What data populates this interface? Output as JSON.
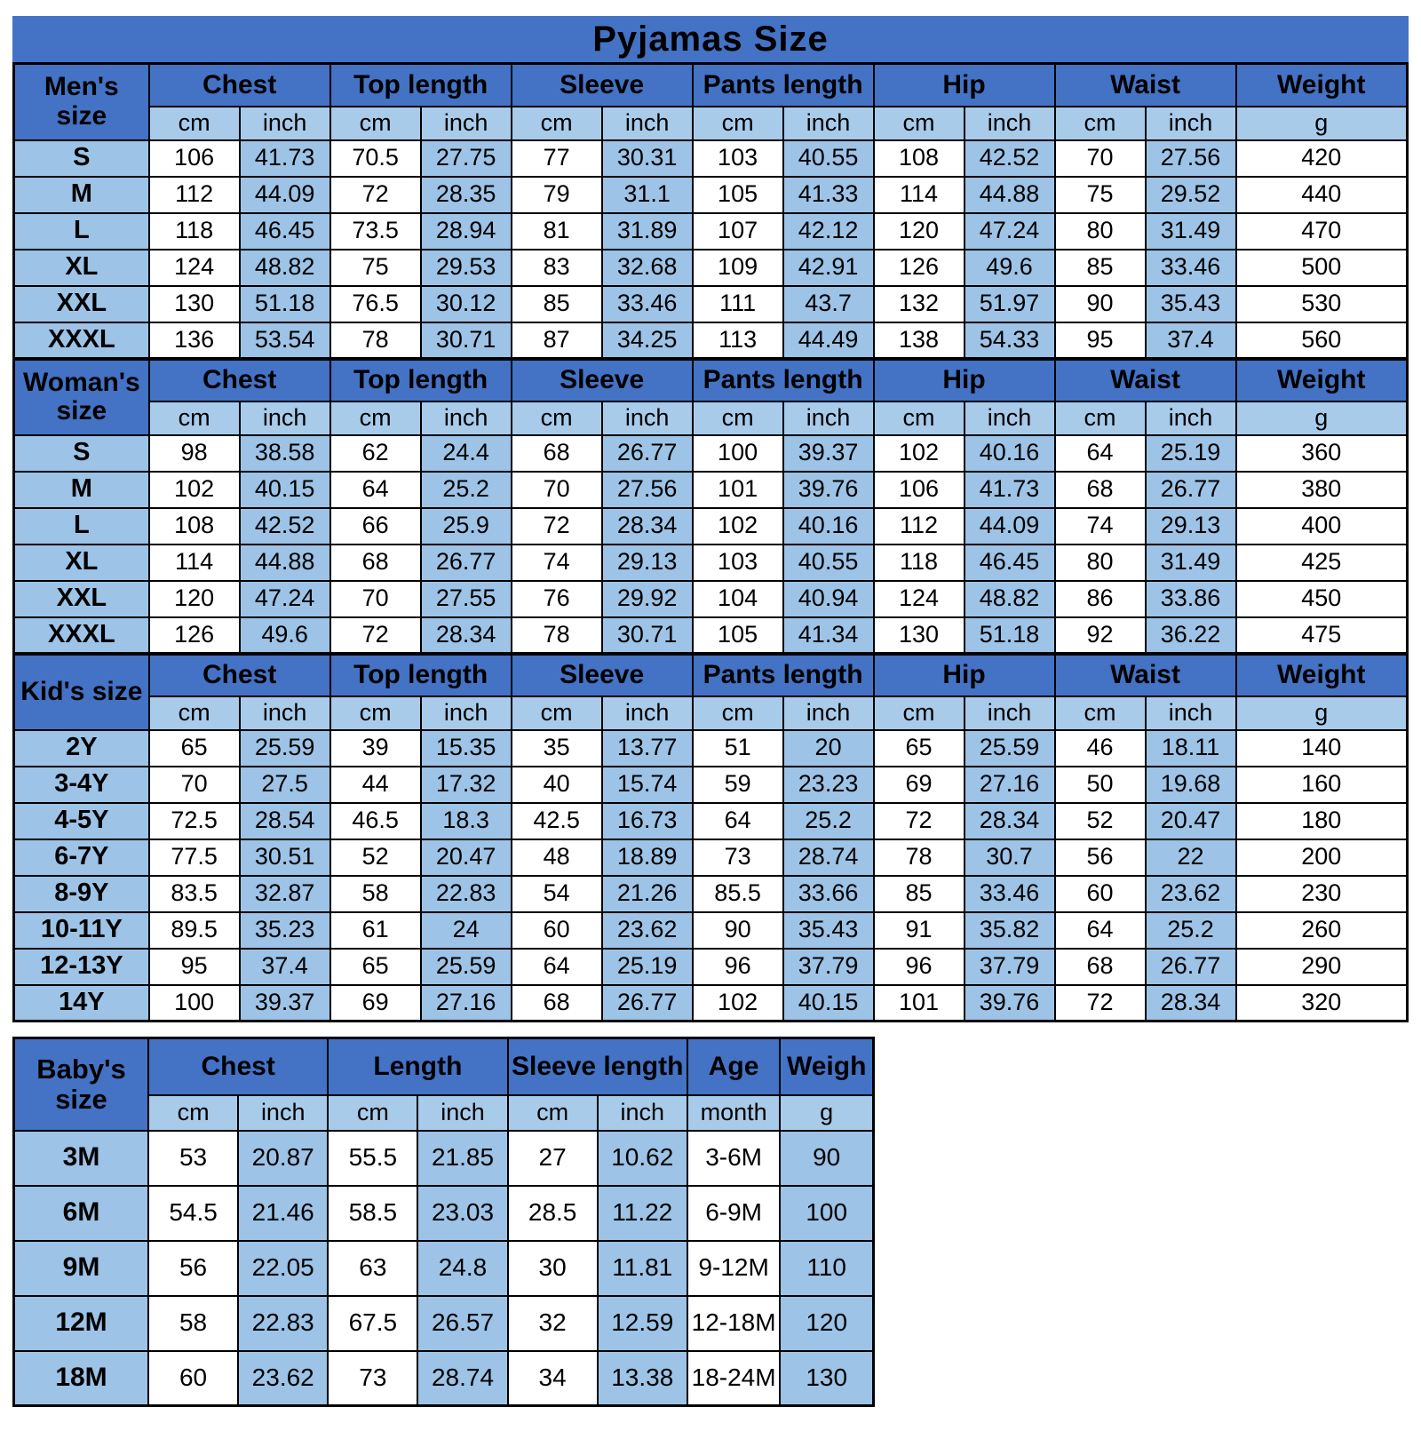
{
  "title": "Pyjamas Size",
  "colors": {
    "header_blue": "#4472C4",
    "subheader_blue": "#A8CBEA",
    "cell_blue": "#9DC3E6",
    "border_black": "#000000",
    "background_white": "#FFFFFF"
  },
  "chart_data": [
    {
      "type": "table",
      "section": "Men's size",
      "label_lines": [
        "Men's",
        "size"
      ],
      "column_groups": [
        {
          "label": "Chest",
          "units": [
            "cm",
            "inch"
          ]
        },
        {
          "label": "Top length",
          "units": [
            "cm",
            "inch"
          ]
        },
        {
          "label": "Sleeve",
          "units": [
            "cm",
            "inch"
          ]
        },
        {
          "label": "Pants length",
          "units": [
            "cm",
            "inch"
          ]
        },
        {
          "label": "Hip",
          "units": [
            "cm",
            "inch"
          ]
        },
        {
          "label": "Waist",
          "units": [
            "cm",
            "inch"
          ]
        },
        {
          "label": "Weight",
          "units": [
            "g"
          ]
        }
      ],
      "g_shaded": false,
      "rows": [
        {
          "size": "S",
          "values": [
            "106",
            "41.73",
            "70.5",
            "27.75",
            "77",
            "30.31",
            "103",
            "40.55",
            "108",
            "42.52",
            "70",
            "27.56",
            "420"
          ]
        },
        {
          "size": "M",
          "values": [
            "112",
            "44.09",
            "72",
            "28.35",
            "79",
            "31.1",
            "105",
            "41.33",
            "114",
            "44.88",
            "75",
            "29.52",
            "440"
          ]
        },
        {
          "size": "L",
          "values": [
            "118",
            "46.45",
            "73.5",
            "28.94",
            "81",
            "31.89",
            "107",
            "42.12",
            "120",
            "47.24",
            "80",
            "31.49",
            "470"
          ]
        },
        {
          "size": "XL",
          "values": [
            "124",
            "48.82",
            "75",
            "29.53",
            "83",
            "32.68",
            "109",
            "42.91",
            "126",
            "49.6",
            "85",
            "33.46",
            "500"
          ]
        },
        {
          "size": "XXL",
          "values": [
            "130",
            "51.18",
            "76.5",
            "30.12",
            "85",
            "33.46",
            "111",
            "43.7",
            "132",
            "51.97",
            "90",
            "35.43",
            "530"
          ]
        },
        {
          "size": "XXXL",
          "values": [
            "136",
            "53.54",
            "78",
            "30.71",
            "87",
            "34.25",
            "113",
            "44.49",
            "138",
            "54.33",
            "95",
            "37.4",
            "560"
          ]
        }
      ]
    },
    {
      "type": "table",
      "section": "Woman's size",
      "label_lines": [
        "Woman's",
        "size"
      ],
      "column_groups": [
        {
          "label": "Chest",
          "units": [
            "cm",
            "inch"
          ]
        },
        {
          "label": "Top length",
          "units": [
            "cm",
            "inch"
          ]
        },
        {
          "label": "Sleeve",
          "units": [
            "cm",
            "inch"
          ]
        },
        {
          "label": "Pants length",
          "units": [
            "cm",
            "inch"
          ]
        },
        {
          "label": "Hip",
          "units": [
            "cm",
            "inch"
          ]
        },
        {
          "label": "Waist",
          "units": [
            "cm",
            "inch"
          ]
        },
        {
          "label": "Weight",
          "units": [
            "g"
          ]
        }
      ],
      "g_shaded": false,
      "rows": [
        {
          "size": "S",
          "values": [
            "98",
            "38.58",
            "62",
            "24.4",
            "68",
            "26.77",
            "100",
            "39.37",
            "102",
            "40.16",
            "64",
            "25.19",
            "360"
          ]
        },
        {
          "size": "M",
          "values": [
            "102",
            "40.15",
            "64",
            "25.2",
            "70",
            "27.56",
            "101",
            "39.76",
            "106",
            "41.73",
            "68",
            "26.77",
            "380"
          ]
        },
        {
          "size": "L",
          "values": [
            "108",
            "42.52",
            "66",
            "25.9",
            "72",
            "28.34",
            "102",
            "40.16",
            "112",
            "44.09",
            "74",
            "29.13",
            "400"
          ]
        },
        {
          "size": "XL",
          "values": [
            "114",
            "44.88",
            "68",
            "26.77",
            "74",
            "29.13",
            "103",
            "40.55",
            "118",
            "46.45",
            "80",
            "31.49",
            "425"
          ]
        },
        {
          "size": "XXL",
          "values": [
            "120",
            "47.24",
            "70",
            "27.55",
            "76",
            "29.92",
            "104",
            "40.94",
            "124",
            "48.82",
            "86",
            "33.86",
            "450"
          ]
        },
        {
          "size": "XXXL",
          "values": [
            "126",
            "49.6",
            "72",
            "28.34",
            "78",
            "30.71",
            "105",
            "41.34",
            "130",
            "51.18",
            "92",
            "36.22",
            "475"
          ]
        }
      ]
    },
    {
      "type": "table",
      "section": "Kid's size",
      "label_lines": [
        "Kid's size"
      ],
      "column_groups": [
        {
          "label": "Chest",
          "units": [
            "cm",
            "inch"
          ]
        },
        {
          "label": "Top length",
          "units": [
            "cm",
            "inch"
          ]
        },
        {
          "label": "Sleeve",
          "units": [
            "cm",
            "inch"
          ]
        },
        {
          "label": "Pants length",
          "units": [
            "cm",
            "inch"
          ]
        },
        {
          "label": "Hip",
          "units": [
            "cm",
            "inch"
          ]
        },
        {
          "label": "Waist",
          "units": [
            "cm",
            "inch"
          ]
        },
        {
          "label": "Weight",
          "units": [
            "g"
          ]
        }
      ],
      "g_shaded": false,
      "rows": [
        {
          "size": "2Y",
          "values": [
            "65",
            "25.59",
            "39",
            "15.35",
            "35",
            "13.77",
            "51",
            "20",
            "65",
            "25.59",
            "46",
            "18.11",
            "140"
          ]
        },
        {
          "size": "3-4Y",
          "values": [
            "70",
            "27.5",
            "44",
            "17.32",
            "40",
            "15.74",
            "59",
            "23.23",
            "69",
            "27.16",
            "50",
            "19.68",
            "160"
          ]
        },
        {
          "size": "4-5Y",
          "values": [
            "72.5",
            "28.54",
            "46.5",
            "18.3",
            "42.5",
            "16.73",
            "64",
            "25.2",
            "72",
            "28.34",
            "52",
            "20.47",
            "180"
          ]
        },
        {
          "size": "6-7Y",
          "values": [
            "77.5",
            "30.51",
            "52",
            "20.47",
            "48",
            "18.89",
            "73",
            "28.74",
            "78",
            "30.7",
            "56",
            "22",
            "200"
          ]
        },
        {
          "size": "8-9Y",
          "values": [
            "83.5",
            "32.87",
            "58",
            "22.83",
            "54",
            "21.26",
            "85.5",
            "33.66",
            "85",
            "33.46",
            "60",
            "23.62",
            "230"
          ]
        },
        {
          "size": "10-11Y",
          "values": [
            "89.5",
            "35.23",
            "61",
            "24",
            "60",
            "23.62",
            "90",
            "35.43",
            "91",
            "35.82",
            "64",
            "25.2",
            "260"
          ]
        },
        {
          "size": "12-13Y",
          "values": [
            "95",
            "37.4",
            "65",
            "25.59",
            "64",
            "25.19",
            "96",
            "37.79",
            "96",
            "37.79",
            "68",
            "26.77",
            "290"
          ]
        },
        {
          "size": "14Y",
          "values": [
            "100",
            "39.37",
            "69",
            "27.16",
            "68",
            "26.77",
            "102",
            "40.15",
            "101",
            "39.76",
            "72",
            "28.34",
            "320"
          ]
        }
      ]
    },
    {
      "type": "table",
      "section": "Baby's size",
      "label_lines": [
        "Baby's",
        "size"
      ],
      "column_groups": [
        {
          "label": "Chest",
          "units": [
            "cm",
            "inch"
          ]
        },
        {
          "label": "Length",
          "units": [
            "cm",
            "inch"
          ]
        },
        {
          "label": "Sleeve length",
          "units": [
            "cm",
            "inch"
          ]
        },
        {
          "label": "Age",
          "units": [
            "month"
          ]
        },
        {
          "label": "Weigh",
          "units": [
            "g"
          ]
        }
      ],
      "g_shaded": true,
      "rows": [
        {
          "size": "3M",
          "values": [
            "53",
            "20.87",
            "55.5",
            "21.85",
            "27",
            "10.62",
            "3-6M",
            "90"
          ]
        },
        {
          "size": "6M",
          "values": [
            "54.5",
            "21.46",
            "58.5",
            "23.03",
            "28.5",
            "11.22",
            "6-9M",
            "100"
          ]
        },
        {
          "size": "9M",
          "values": [
            "56",
            "22.05",
            "63",
            "24.8",
            "30",
            "11.81",
            "9-12M",
            "110"
          ]
        },
        {
          "size": "12M",
          "values": [
            "58",
            "22.83",
            "67.5",
            "26.57",
            "32",
            "12.59",
            "12-18M",
            "120"
          ]
        },
        {
          "size": "18M",
          "values": [
            "60",
            "23.62",
            "73",
            "28.74",
            "34",
            "13.38",
            "18-24M",
            "130"
          ]
        }
      ]
    }
  ]
}
